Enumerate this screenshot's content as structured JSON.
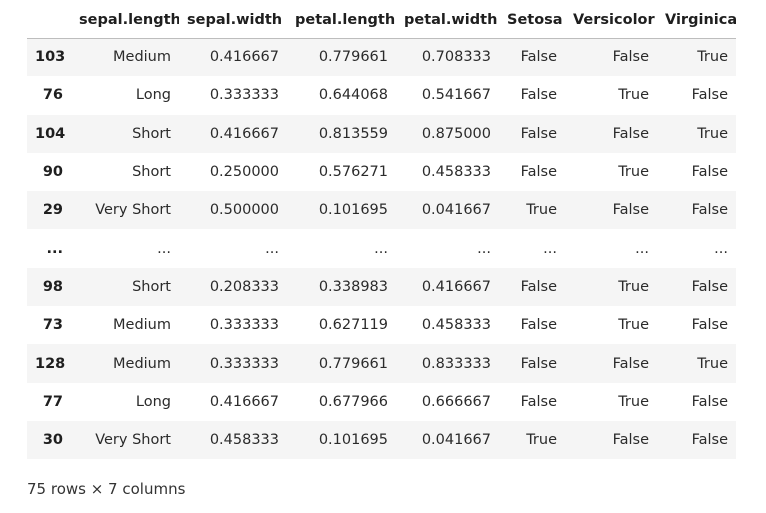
{
  "table": {
    "columns": [
      "",
      "sepal.length",
      "sepal.width",
      "petal.length",
      "petal.width",
      "Setosa",
      "Versicolor",
      "Virginica"
    ],
    "rows": [
      [
        "103",
        "Medium",
        "0.416667",
        "0.779661",
        "0.708333",
        "False",
        "False",
        "True"
      ],
      [
        "76",
        "Long",
        "0.333333",
        "0.644068",
        "0.541667",
        "False",
        "True",
        "False"
      ],
      [
        "104",
        "Short",
        "0.416667",
        "0.813559",
        "0.875000",
        "False",
        "False",
        "True"
      ],
      [
        "90",
        "Short",
        "0.250000",
        "0.576271",
        "0.458333",
        "False",
        "True",
        "False"
      ],
      [
        "29",
        "Very Short",
        "0.500000",
        "0.101695",
        "0.041667",
        "True",
        "False",
        "False"
      ],
      [
        "...",
        "...",
        "...",
        "...",
        "...",
        "...",
        "...",
        "..."
      ],
      [
        "98",
        "Short",
        "0.208333",
        "0.338983",
        "0.416667",
        "False",
        "True",
        "False"
      ],
      [
        "73",
        "Medium",
        "0.333333",
        "0.627119",
        "0.458333",
        "False",
        "True",
        "False"
      ],
      [
        "128",
        "Medium",
        "0.333333",
        "0.779661",
        "0.833333",
        "False",
        "False",
        "True"
      ],
      [
        "77",
        "Long",
        "0.416667",
        "0.677966",
        "0.666667",
        "False",
        "True",
        "False"
      ],
      [
        "30",
        "Very Short",
        "0.458333",
        "0.101695",
        "0.041667",
        "True",
        "False",
        "False"
      ]
    ]
  },
  "caption": "75 rows × 7 columns",
  "colors": {
    "stripe": "#f5f5f5",
    "header_rule": "#bdbdbd"
  }
}
